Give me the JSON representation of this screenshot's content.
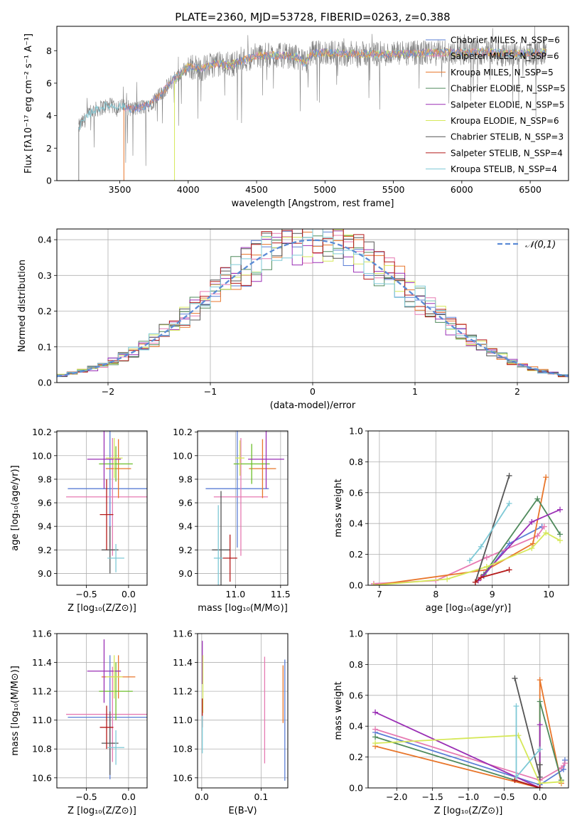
{
  "figure": {
    "title": "PLATE=2360, MJD=53728, FIBERID=0263, z=0.388"
  },
  "colors": {
    "chabrier_miles": "#5b7fd6",
    "salpeter_miles": "#e67ab2",
    "kroupa_miles": "#e8762b",
    "chabrier_elodie": "#4f8a5c",
    "salpeter_elodie": "#9a2fb5",
    "kroupa_elodie": "#d6e85a",
    "chabrier_stelib": "#555555",
    "salpeter_stelib": "#b51a1a",
    "kroupa_stelib": "#7ec9d6",
    "spectrum": "#808080",
    "gaussian": "#5b8bd6",
    "green_err": "#6cbf2a",
    "grid": "#b0b0b0"
  },
  "chart_data": [
    {
      "id": "spectrum",
      "type": "line",
      "title": "PLATE=2360, MJD=53728, FIBERID=0263, z=0.388",
      "xlabel": "wavelength [Angstrom, rest frame]",
      "ylabel": "Flux [fλ10⁻¹⁷ erg cm⁻² s⁻¹ A⁻¹]",
      "xlim": [
        3040,
        6780
      ],
      "ylim": [
        0,
        9.5
      ],
      "xticks": [
        "3500",
        "4000",
        "4500",
        "5000",
        "5500",
        "6000",
        "6500"
      ],
      "yticks": [
        "0",
        "2",
        "4",
        "6",
        "8"
      ],
      "grid": false,
      "legend_placement": "top-right",
      "legend": [
        {
          "label": "Chabrier MILES, N_SSP=6",
          "color_key": "chabrier_miles"
        },
        {
          "label": "Salpeter MILES, N_SSP=6",
          "color_key": "salpeter_miles"
        },
        {
          "label": "Kroupa MILES, N_SSP=5",
          "color_key": "kroupa_miles"
        },
        {
          "label": "Chabrier ELODIE, N_SSP=5",
          "color_key": "chabrier_elodie"
        },
        {
          "label": "Salpeter ELODIE, N_SSP=5",
          "color_key": "salpeter_elodie"
        },
        {
          "label": "Kroupa ELODIE, N_SSP=6",
          "color_key": "kroupa_elodie"
        },
        {
          "label": "Chabrier STELIB, N_SSP=3",
          "color_key": "chabrier_stelib"
        },
        {
          "label": "Salpeter STELIB, N_SSP=4",
          "color_key": "salpeter_stelib"
        },
        {
          "label": "Kroupa STELIB, N_SSP=4",
          "color_key": "kroupa_stelib"
        }
      ],
      "spectrum_envelope": {
        "x": [
          3200,
          3300,
          3400,
          3500,
          3600,
          3700,
          3800,
          3900,
          4000,
          4100,
          4200,
          4300,
          4400,
          4500,
          4600,
          4700,
          4800,
          4850,
          4900,
          5000,
          5200,
          5400,
          5600,
          5800,
          6000,
          6200,
          6400,
          6600
        ],
        "y": [
          3.3,
          4.3,
          4.6,
          4.6,
          4.4,
          4.6,
          5.3,
          6.3,
          7.0,
          6.9,
          7.2,
          7.1,
          7.4,
          7.7,
          7.7,
          7.7,
          7.6,
          7.2,
          7.8,
          7.9,
          7.8,
          7.8,
          7.8,
          7.9,
          7.9,
          7.9,
          7.8,
          7.9
        ]
      }
    },
    {
      "id": "residuals",
      "type": "bar",
      "xlabel": "(data-model)/error",
      "ylabel": "Normed distribution",
      "xlim": [
        -2.5,
        2.5
      ],
      "ylim": [
        0,
        0.43
      ],
      "xticks": [
        "−2",
        "−1",
        "0",
        "1",
        "2"
      ],
      "yticks": [
        "0.0",
        "0.1",
        "0.2",
        "0.3",
        "0.4"
      ],
      "grid": true,
      "legend_placement": "top-right",
      "legend": [
        {
          "label": "𝒩(0,1)",
          "color_key": "gaussian"
        }
      ],
      "bin_width": 0.1
    },
    {
      "id": "age_vs_Z",
      "type": "scatter",
      "xlabel": "Z [log₁₀(Z/Z⊙)]",
      "ylabel": "age  [log₁₀(age/yr)]",
      "xlim": [
        -0.85,
        0.22
      ],
      "ylim": [
        8.9,
        10.21
      ],
      "xticks": [
        "−0.5",
        "0.0"
      ],
      "yticks": [
        "9.0",
        "9.2",
        "9.4",
        "9.6",
        "9.8",
        "10.0",
        "10.2"
      ],
      "grid": true,
      "points": [
        {
          "color_key": "chabrier_miles",
          "x": -0.22,
          "y": 9.72,
          "xerr": 0.5,
          "yerr": 0.5
        },
        {
          "color_key": "salpeter_miles",
          "x": -0.19,
          "y": 9.65,
          "xerr": 0.55,
          "yerr": 0.5
        },
        {
          "color_key": "kroupa_miles",
          "x": -0.12,
          "y": 9.89,
          "xerr": 0.15,
          "yerr": 0.25
        },
        {
          "color_key": "green_err",
          "x": -0.15,
          "y": 9.93,
          "xerr": 0.2,
          "yerr": 0.15
        },
        {
          "color_key": "salpeter_elodie",
          "x": -0.29,
          "y": 9.97,
          "xerr": 0.2,
          "yerr": 0.25
        },
        {
          "color_key": "kroupa_elodie",
          "x": -0.17,
          "y": 9.98,
          "xerr": 0.1,
          "yerr": 0.17
        },
        {
          "color_key": "chabrier_stelib",
          "x": -0.22,
          "y": 9.2,
          "xerr": 0.1,
          "yerr": 0.2
        },
        {
          "color_key": "salpeter_stelib",
          "x": -0.26,
          "y": 9.5,
          "xerr": 0.08,
          "yerr": 0.3
        },
        {
          "color_key": "kroupa_stelib",
          "x": -0.15,
          "y": 9.13,
          "xerr": 0.1,
          "yerr": 0.12
        }
      ]
    },
    {
      "id": "age_vs_mass",
      "type": "scatter",
      "xlabel": "mass [log₁₀(M/M⊙)]",
      "xlim": [
        10.58,
        11.58
      ],
      "ylim": [
        8.9,
        10.21
      ],
      "xticks": [
        "11.0",
        "11.5"
      ],
      "yticks": [
        "9.0",
        "9.2",
        "9.4",
        "9.6",
        "9.8",
        "10.0",
        "10.2"
      ],
      "grid": true,
      "points": [
        {
          "color_key": "chabrier_miles",
          "x": 11.02,
          "y": 9.72,
          "xerr": 0.35,
          "yerr": 0.5
        },
        {
          "color_key": "salpeter_miles",
          "x": 11.06,
          "y": 9.65,
          "xerr": 0.3,
          "yerr": 0.5
        },
        {
          "color_key": "kroupa_miles",
          "x": 11.3,
          "y": 9.89,
          "xerr": 0.15,
          "yerr": 0.25
        },
        {
          "color_key": "green_err",
          "x": 11.18,
          "y": 9.93,
          "xerr": 0.2,
          "yerr": 0.17
        },
        {
          "color_key": "salpeter_elodie",
          "x": 11.34,
          "y": 9.97,
          "xerr": 0.2,
          "yerr": 0.25
        },
        {
          "color_key": "kroupa_elodie",
          "x": 11.05,
          "y": 9.98,
          "xerr": 0.05,
          "yerr": 0.15
        },
        {
          "color_key": "chabrier_stelib",
          "x": 10.84,
          "y": 9.2,
          "xerr": 0.1,
          "yerr": 0.5
        },
        {
          "color_key": "salpeter_stelib",
          "x": 10.94,
          "y": 9.13,
          "xerr": 0.08,
          "yerr": 0.2
        },
        {
          "color_key": "kroupa_stelib",
          "x": 10.81,
          "y": 9.13,
          "xerr": 0.05,
          "yerr": 0.45
        }
      ]
    },
    {
      "id": "weight_vs_age",
      "type": "line",
      "xlabel": "age  [log₁₀(age/yr)]",
      "ylabel": "mass weight",
      "xlim": [
        6.8,
        10.35
      ],
      "ylim": [
        0,
        1.0
      ],
      "xticks": [
        "7",
        "8",
        "9",
        "10"
      ],
      "yticks": [
        "0.0",
        "0.2",
        "0.4",
        "0.6",
        "0.8",
        "1.0"
      ],
      "grid": true,
      "series": [
        {
          "color_key": "chabrier_miles",
          "x": [
            8.85,
            9.3,
            9.88
          ],
          "y": [
            0.06,
            0.27,
            0.38
          ]
        },
        {
          "color_key": "salpeter_miles",
          "x": [
            6.9,
            8.0,
            8.9,
            9.8,
            9.92
          ],
          "y": [
            0.01,
            0.03,
            0.18,
            0.32,
            0.38
          ]
        },
        {
          "color_key": "kroupa_miles",
          "x": [
            6.9,
            8.9,
            9.72,
            9.95
          ],
          "y": [
            0.0,
            0.1,
            0.27,
            0.7
          ]
        },
        {
          "color_key": "chabrier_elodie",
          "x": [
            8.85,
            9.8,
            10.2
          ],
          "y": [
            0.07,
            0.56,
            0.33
          ]
        },
        {
          "color_key": "salpeter_elodie",
          "x": [
            8.75,
            9.7,
            10.2
          ],
          "y": [
            0.03,
            0.41,
            0.49
          ]
        },
        {
          "color_key": "kroupa_elodie",
          "x": [
            6.9,
            8.2,
            8.9,
            9.7,
            9.95,
            10.2
          ],
          "y": [
            0.0,
            0.04,
            0.12,
            0.24,
            0.34,
            0.29
          ]
        },
        {
          "color_key": "chabrier_stelib",
          "x": [
            8.7,
            9.3
          ],
          "y": [
            0.02,
            0.71
          ]
        },
        {
          "color_key": "salpeter_stelib",
          "x": [
            8.7,
            8.8,
            9.3
          ],
          "y": [
            0.02,
            0.05,
            0.1
          ]
        },
        {
          "color_key": "kroupa_stelib",
          "x": [
            8.6,
            8.8,
            9.3
          ],
          "y": [
            0.16,
            0.25,
            0.53
          ]
        }
      ]
    },
    {
      "id": "mass_vs_Z",
      "type": "scatter",
      "xlabel": "Z [log₁₀(Z/Z⊙)]",
      "ylabel": "mass [log₁₀(M/M⊙)]",
      "xlim": [
        -0.85,
        0.22
      ],
      "ylim": [
        10.53,
        11.6
      ],
      "xticks": [
        "−0.5",
        "0.0"
      ],
      "yticks": [
        "10.6",
        "10.8",
        "11.0",
        "11.2",
        "11.4",
        "11.6"
      ],
      "grid": true,
      "points": [
        {
          "color_key": "chabrier_miles",
          "x": -0.22,
          "y": 11.02,
          "xerr": 0.5,
          "yerr": 0.43
        },
        {
          "color_key": "salpeter_miles",
          "x": -0.19,
          "y": 11.04,
          "xerr": 0.55,
          "yerr": 0.33
        },
        {
          "color_key": "kroupa_miles",
          "x": -0.12,
          "y": 11.3,
          "xerr": 0.2,
          "yerr": 0.15
        },
        {
          "color_key": "green_err",
          "x": -0.15,
          "y": 11.2,
          "xerr": 0.2,
          "yerr": 0.2
        },
        {
          "color_key": "salpeter_elodie",
          "x": -0.29,
          "y": 11.34,
          "xerr": 0.2,
          "yerr": 0.22
        },
        {
          "color_key": "kroupa_elodie",
          "x": -0.17,
          "y": 11.3,
          "xerr": 0.1,
          "yerr": 0.15
        },
        {
          "color_key": "chabrier_stelib",
          "x": -0.22,
          "y": 10.84,
          "xerr": 0.1,
          "yerr": 0.22
        },
        {
          "color_key": "salpeter_stelib",
          "x": -0.26,
          "y": 10.95,
          "xerr": 0.08,
          "yerr": 0.15
        },
        {
          "color_key": "kroupa_stelib",
          "x": -0.15,
          "y": 10.81,
          "xerr": 0.1,
          "yerr": 0.12
        }
      ]
    },
    {
      "id": "mass_vs_EBV",
      "type": "scatter",
      "xlabel": "E(B-V)",
      "xlim": [
        -0.007,
        0.145
      ],
      "ylim": [
        10.53,
        11.6
      ],
      "xticks": [
        "0.0",
        "0.1"
      ],
      "yticks": [
        "10.6",
        "10.8",
        "11.0",
        "11.2",
        "11.4",
        "11.6"
      ],
      "grid": true,
      "points": [
        {
          "color_key": "chabrier_miles",
          "x": 0.14,
          "y": 11.0,
          "yerr": 0.42
        },
        {
          "color_key": "salpeter_miles",
          "x": 0.106,
          "y": 11.07,
          "yerr": 0.37
        },
        {
          "color_key": "kroupa_miles",
          "x": 0.137,
          "y": 11.18,
          "yerr": 0.2
        },
        {
          "color_key": "salpeter_elodie",
          "x": 0.001,
          "y": 11.4,
          "yerr": 0.15
        },
        {
          "color_key": "kroupa_elodie",
          "x": 0.002,
          "y": 11.25,
          "yerr": 0.2
        },
        {
          "color_key": "salpeter_stelib",
          "x": 0.001,
          "y": 11.05,
          "yerr": 0.1
        },
        {
          "color_key": "kroupa_stelib",
          "x": 0.001,
          "y": 10.9,
          "yerr": 0.13
        }
      ]
    },
    {
      "id": "weight_vs_Z",
      "type": "line",
      "xlabel": "Z [log₁₀(Z/Z⊙)]",
      "ylabel": "mass weight",
      "xlim": [
        -2.4,
        0.4
      ],
      "ylim": [
        0,
        1.0
      ],
      "xticks": [
        "−2.0",
        "−1.5",
        "−1.0",
        "−0.5",
        "0.0"
      ],
      "yticks": [
        "0.0",
        "0.2",
        "0.4",
        "0.6",
        "0.8",
        "1.0"
      ],
      "grid": true,
      "series": [
        {
          "color_key": "chabrier_miles",
          "x": [
            -2.3,
            0.0,
            0.33,
            0.35
          ],
          "y": [
            0.36,
            0.02,
            0.12,
            0.18
          ]
        },
        {
          "color_key": "salpeter_miles",
          "x": [
            -2.3,
            0.0,
            0.3,
            0.35
          ],
          "y": [
            0.38,
            0.05,
            0.13,
            0.16
          ]
        },
        {
          "color_key": "kroupa_miles",
          "x": [
            -2.3,
            0.0,
            0.0,
            0.3
          ],
          "y": [
            0.27,
            0.0,
            0.7,
            0.03
          ]
        },
        {
          "color_key": "chabrier_elodie",
          "x": [
            -2.3,
            0.0,
            0.0,
            0.3
          ],
          "y": [
            0.33,
            0.0,
            0.56,
            0.05
          ]
        },
        {
          "color_key": "salpeter_elodie",
          "x": [
            -2.3,
            0.0,
            0.0
          ],
          "y": [
            0.49,
            0.0,
            0.41
          ]
        },
        {
          "color_key": "kroupa_elodie",
          "x": [
            -2.3,
            -0.3,
            0.0,
            0.3
          ],
          "y": [
            0.29,
            0.34,
            0.03,
            0.04
          ]
        },
        {
          "color_key": "chabrier_stelib",
          "x": [
            -0.35,
            0.0,
            0.0
          ],
          "y": [
            0.71,
            0.07,
            0.15
          ]
        },
        {
          "color_key": "salpeter_stelib",
          "x": [
            -0.35,
            0.0
          ],
          "y": [
            0.05,
            0.0
          ]
        },
        {
          "color_key": "kroupa_stelib",
          "x": [
            -0.33,
            -0.33,
            0.0
          ],
          "y": [
            0.53,
            0.07,
            0.25
          ]
        }
      ]
    }
  ]
}
